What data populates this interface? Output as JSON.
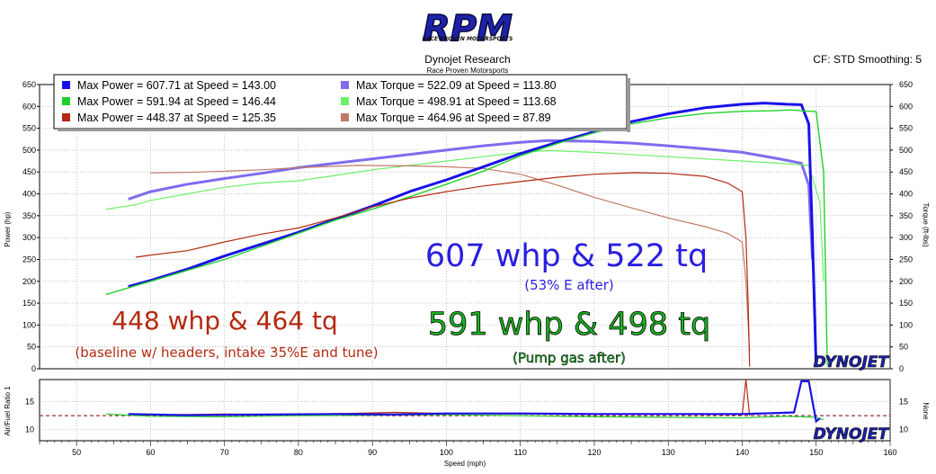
{
  "header": {
    "logo_text": "RPM",
    "logo_subtext": "RACE PROVEN MOTORSPORTS",
    "title": "Dynojet Research",
    "subtitle": "Race Proven Motorsports",
    "cf_text": "CF: STD Smoothing: 5"
  },
  "brand": {
    "watermark": "DYNOJET"
  },
  "legend": {
    "entries": [
      {
        "text": "Max Power = 607.71 at Speed = 143.00",
        "color": "#1a10e8"
      },
      {
        "text": "Max Torque = 522.09 at Speed = 113.80",
        "color": "#7e6cf0"
      },
      {
        "text": "Max Power = 591.94 at Speed = 146.44",
        "color": "#22d12a"
      },
      {
        "text": "Max Torque = 498.91 at Speed = 113.68",
        "color": "#6cf06a"
      },
      {
        "text": "Max Power = 448.37 at Speed = 125.35",
        "color": "#b32a10"
      },
      {
        "text": "Max Torque = 464.96 at Speed = 87.89",
        "color": "#bf7a66"
      }
    ]
  },
  "annotations": {
    "blue_main": "607 whp & 522 tq",
    "blue_sub": "(53% E after)",
    "green_main": "591 whp & 498 tq",
    "green_sub": "(Pump gas after)",
    "red_main": "448 whp & 464 tq",
    "red_sub": "(baseline w/ headers, intake 35%E and tune)"
  },
  "colors": {
    "blue_power": "#1a10e8",
    "blue_torque": "#7e6cf0",
    "green_power": "#22d12a",
    "green_torque": "#6cf06a",
    "red_power": "#b32a10",
    "red_torque": "#bf7a66",
    "blue_text": "#2a1ee0",
    "green_text": "#19b51f",
    "red_text": "#b22a10"
  },
  "chart_data": [
    {
      "type": "line",
      "title": "Dynojet Research",
      "xlabel": "Speed (mph)",
      "ylabel": "Power (hp)",
      "y2label": "Torque (ft-lbs)",
      "xlim": [
        45,
        160
      ],
      "ylim": [
        0,
        650
      ],
      "x_ticks": [
        50,
        60,
        70,
        80,
        90,
        100,
        110,
        120,
        130,
        140,
        150,
        160
      ],
      "y_ticks": [
        0,
        50,
        100,
        150,
        200,
        250,
        300,
        350,
        400,
        450,
        500,
        550,
        600,
        650
      ],
      "grid": true,
      "legend_position": "top-left",
      "series": [
        {
          "name": "Max Power = 607.71 at Speed = 143.00",
          "kind": "power",
          "color": "#1a10e8",
          "x": [
            57,
            60,
            65,
            70,
            75,
            80,
            85,
            90,
            95,
            100,
            105,
            110,
            115,
            120,
            125,
            130,
            135,
            140,
            143,
            146,
            148,
            149,
            149.5,
            150
          ],
          "y": [
            188,
            202,
            228,
            258,
            285,
            312,
            342,
            372,
            405,
            432,
            462,
            492,
            518,
            542,
            565,
            583,
            597,
            605,
            607.7,
            605,
            604,
            560,
            300,
            5
          ]
        },
        {
          "name": "Max Torque = 522.09 at Speed = 113.80",
          "kind": "torque",
          "color": "#7e6cf0",
          "x": [
            57,
            60,
            65,
            70,
            75,
            80,
            85,
            90,
            95,
            100,
            105,
            110,
            113.8,
            120,
            125,
            130,
            135,
            140,
            145,
            148,
            149,
            149.5
          ],
          "y": [
            388,
            405,
            422,
            435,
            447,
            460,
            470,
            480,
            490,
            500,
            510,
            518,
            522,
            520,
            516,
            510,
            503,
            495,
            480,
            470,
            420,
            250
          ]
        },
        {
          "name": "Max Power = 591.94 at Speed = 146.44",
          "kind": "power",
          "color": "#22d12a",
          "x": [
            54,
            58,
            60,
            65,
            70,
            75,
            80,
            85,
            90,
            95,
            100,
            105,
            110,
            115,
            120,
            125,
            130,
            135,
            140,
            144,
            146.4,
            150,
            151,
            151.5
          ],
          "y": [
            170,
            190,
            200,
            225,
            250,
            280,
            310,
            340,
            365,
            393,
            422,
            452,
            487,
            515,
            540,
            560,
            574,
            584,
            589,
            590,
            592,
            588,
            450,
            8
          ]
        },
        {
          "name": "Max Torque = 498.91 at Speed = 113.68",
          "kind": "torque",
          "color": "#6cf06a",
          "x": [
            54,
            58,
            60,
            65,
            70,
            75,
            80,
            85,
            90,
            95,
            100,
            105,
            110,
            113.7,
            120,
            125,
            130,
            135,
            140,
            145,
            149,
            150.5,
            151
          ],
          "y": [
            365,
            375,
            385,
            400,
            415,
            425,
            430,
            442,
            455,
            465,
            475,
            485,
            495,
            499,
            495,
            490,
            485,
            480,
            475,
            470,
            465,
            380,
            200
          ]
        },
        {
          "name": "Max Power = 448.37 at Speed = 125.35",
          "kind": "power",
          "color": "#b32a10",
          "x": [
            58,
            60,
            65,
            70,
            75,
            80,
            85,
            90,
            95,
            100,
            105,
            110,
            115,
            120,
            125.35,
            130,
            135,
            138,
            140,
            140.5,
            140.8,
            141
          ],
          "y": [
            255,
            260,
            270,
            290,
            308,
            322,
            345,
            370,
            390,
            405,
            418,
            428,
            438,
            445,
            448.4,
            447,
            440,
            425,
            405,
            300,
            150,
            5
          ]
        },
        {
          "name": "Max Torque = 464.96 at Speed = 87.89",
          "kind": "torque",
          "color": "#bf7a66",
          "x": [
            60,
            65,
            70,
            75,
            80,
            87.89,
            95,
            100,
            105,
            110,
            115,
            120,
            125,
            130,
            135,
            138,
            140,
            140.5,
            141
          ],
          "y": [
            448,
            449,
            452,
            455,
            460,
            465,
            464,
            462,
            458,
            445,
            420,
            392,
            368,
            345,
            325,
            310,
            290,
            200,
            40
          ]
        }
      ]
    },
    {
      "type": "line",
      "xlabel": "Speed (mph)",
      "ylabel": "Air/Fuel Ratio 1",
      "y2label": "None",
      "xlim": [
        45,
        160
      ],
      "ylim": [
        8,
        19
      ],
      "x_ticks": [
        50,
        60,
        70,
        80,
        90,
        100,
        110,
        120,
        130,
        140,
        150,
        160
      ],
      "y_ticks": [
        10,
        15
      ],
      "grid": true,
      "reference_line": 12.5,
      "series": [
        {
          "kind": "afr",
          "color": "#1a10e8",
          "x": [
            57,
            65,
            75,
            85,
            93,
            100,
            110,
            120,
            130,
            140,
            145,
            147,
            148,
            149,
            150,
            150.5
          ],
          "y": [
            12.8,
            12.6,
            12.7,
            12.8,
            12.7,
            12.9,
            12.9,
            12.8,
            12.8,
            12.8,
            13.0,
            13.1,
            18.7,
            18.7,
            11.5,
            12.0
          ]
        },
        {
          "kind": "afr",
          "color": "#22d12a",
          "x": [
            54,
            60,
            70,
            80,
            90,
            100,
            110,
            120,
            130,
            140,
            146,
            150,
            151
          ],
          "y": [
            12.8,
            12.4,
            12.3,
            12.5,
            12.6,
            12.7,
            12.5,
            12.3,
            12.2,
            12.1,
            12.4,
            12.2,
            11.8
          ]
        },
        {
          "kind": "afr",
          "color": "#b32a10",
          "x": [
            58,
            70,
            80,
            93,
            100,
            110,
            120,
            130,
            138,
            140,
            140.5,
            141
          ],
          "y": [
            12.6,
            12.8,
            12.7,
            13.1,
            12.9,
            12.8,
            12.8,
            12.8,
            12.7,
            12.7,
            19.0,
            12.5
          ]
        }
      ]
    }
  ]
}
